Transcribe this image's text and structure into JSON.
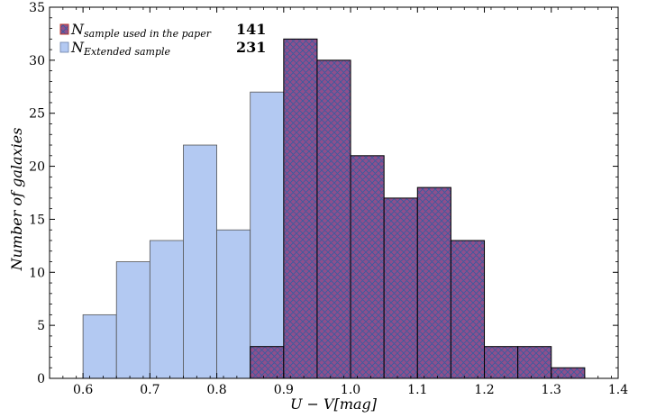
{
  "chart_data": {
    "type": "bar",
    "title": "",
    "xlabel": "U − V[mag]",
    "ylabel": "Number of galaxies",
    "xlim": [
      0.55,
      1.4
    ],
    "ylim": [
      0,
      35
    ],
    "xticks": [
      0.6,
      0.7,
      0.8,
      0.9,
      1.0,
      1.1,
      1.2,
      1.3,
      1.4
    ],
    "xtick_labels": [
      "0.6",
      "0.7",
      "0.8",
      "0.9",
      "1.0",
      "1.1",
      "1.2",
      "1.3",
      "1.4"
    ],
    "yticks": [
      0,
      5,
      10,
      15,
      20,
      25,
      30,
      35
    ],
    "ytick_labels": [
      "0",
      "5",
      "10",
      "15",
      "20",
      "25",
      "30",
      "35"
    ],
    "bin_edges": [
      0.6,
      0.65,
      0.7,
      0.75,
      0.8,
      0.85,
      0.9,
      0.95,
      1.0,
      1.05,
      1.1,
      1.15,
      1.2,
      1.25,
      1.3,
      1.35
    ],
    "legend_position": "top-left",
    "grid": false,
    "series": [
      {
        "name_main": "N",
        "name_sub": "Extended sample",
        "count": "231",
        "color": "#b3c9f2",
        "hatch": false,
        "values": [
          6,
          11,
          13,
          22,
          14,
          27,
          0,
          0,
          0,
          0,
          0,
          0,
          0,
          0,
          0
        ]
      },
      {
        "name_main": "N",
        "name_sub": "sample used in the paper",
        "count": "141",
        "color": "#8f4f8c",
        "hatch_color": "#3a5c9e",
        "hatch": true,
        "values": [
          0,
          0,
          0,
          0,
          0,
          3,
          32,
          30,
          21,
          17,
          18,
          13,
          3,
          3,
          1
        ]
      }
    ]
  }
}
